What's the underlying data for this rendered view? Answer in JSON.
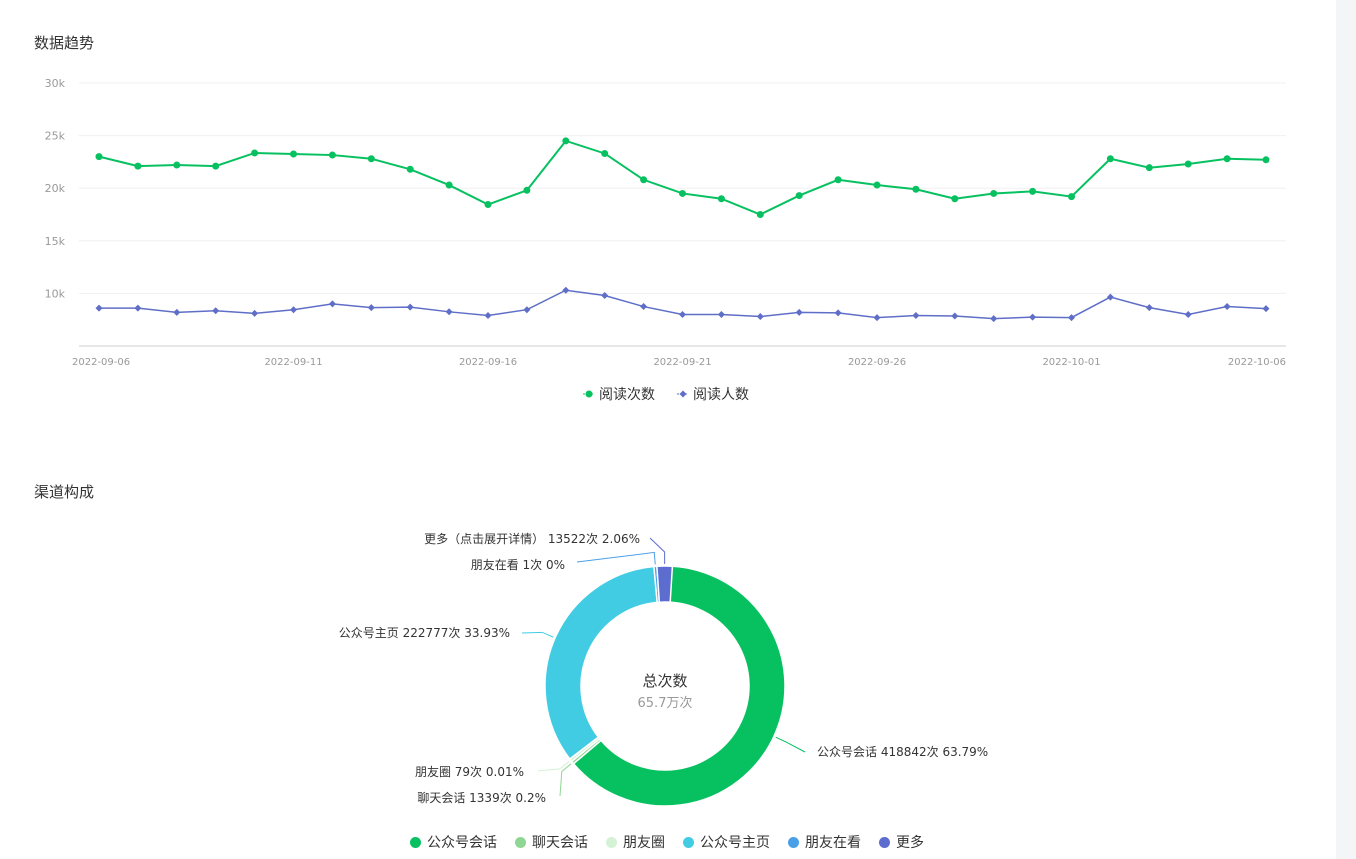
{
  "trend": {
    "title": "数据趋势",
    "chart_data": {
      "type": "line",
      "x": [
        "2022-09-06",
        "2022-09-07",
        "2022-09-08",
        "2022-09-09",
        "2022-09-10",
        "2022-09-11",
        "2022-09-12",
        "2022-09-13",
        "2022-09-14",
        "2022-09-15",
        "2022-09-16",
        "2022-09-17",
        "2022-09-18",
        "2022-09-19",
        "2022-09-20",
        "2022-09-21",
        "2022-09-22",
        "2022-09-23",
        "2022-09-24",
        "2022-09-25",
        "2022-09-26",
        "2022-09-27",
        "2022-09-28",
        "2022-09-29",
        "2022-09-30",
        "2022-10-01",
        "2022-10-02",
        "2022-10-03",
        "2022-10-04",
        "2022-10-05",
        "2022-10-06"
      ],
      "x_tick_labels": [
        "2022-09-06",
        "2022-09-11",
        "2022-09-16",
        "2022-09-21",
        "2022-09-26",
        "2022-10-01",
        "2022-10-06"
      ],
      "y_tick_labels": [
        "10k",
        "15k",
        "20k",
        "25k",
        "30k"
      ],
      "ylim": [
        5000,
        30000
      ],
      "series": [
        {
          "name": "阅读次数",
          "color": "#07c160",
          "marker": "circle",
          "values": [
            23000,
            22100,
            22200,
            22100,
            23350,
            23250,
            23150,
            22800,
            21800,
            20300,
            18450,
            19800,
            24500,
            23300,
            20800,
            19500,
            19000,
            17500,
            19300,
            20800,
            20300,
            19900,
            19000,
            19500,
            19700,
            19200,
            22800,
            21950,
            22300,
            22800,
            22700
          ]
        },
        {
          "name": "阅读人数",
          "color": "#5f6ec7",
          "marker": "diamond",
          "values": [
            8600,
            8600,
            8200,
            8350,
            8100,
            8450,
            9000,
            8650,
            8700,
            8250,
            7900,
            8450,
            10300,
            9800,
            8750,
            8000,
            8000,
            7800,
            8200,
            8150,
            7700,
            7900,
            7850,
            7600,
            7750,
            7700,
            9650,
            8650,
            8000,
            8750,
            8550
          ]
        }
      ],
      "grid": true,
      "legend": "bottom"
    }
  },
  "channel": {
    "title": "渠道构成",
    "center_title": "总次数",
    "center_value": "65.7万次",
    "chart_data": {
      "type": "pie",
      "donut": true,
      "slices": [
        {
          "name": "公众号会话",
          "value": 418842,
          "percent": "63.79%",
          "color": "#07c160",
          "label": "公众号会话 418842次 63.79%"
        },
        {
          "name": "聊天会话",
          "value": 1339,
          "percent": "0.2%",
          "color": "#8fd694",
          "label": "聊天会话 1339次 0.2%"
        },
        {
          "name": "朋友圈",
          "value": 79,
          "percent": "0.01%",
          "color": "#d3f2d6",
          "label": "朋友圈 79次 0.01%"
        },
        {
          "name": "公众号主页",
          "value": 222777,
          "percent": "33.93%",
          "color": "#41cce3",
          "label": "公众号主页 222777次 33.93%"
        },
        {
          "name": "朋友在看",
          "value": 1,
          "percent": "0%",
          "color": "#4aa0e8",
          "label": "朋友在看 1次 0%"
        },
        {
          "name": "更多",
          "value": 13522,
          "percent": "2.06%",
          "color": "#5c6ccf",
          "label": "更多（点击展开详情） 13522次 2.06%"
        }
      ],
      "legend": "bottom"
    }
  }
}
